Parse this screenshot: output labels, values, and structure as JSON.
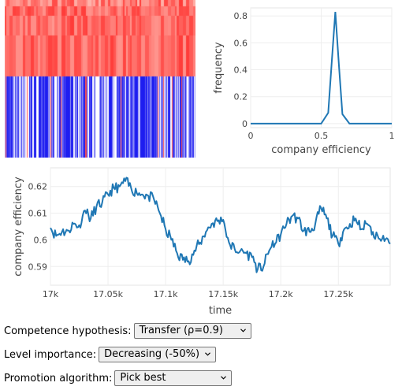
{
  "heatmap": {
    "top_color": "#ff4545",
    "bottom_base": "#ffffff",
    "bottom_colors": [
      "#1e1ef0",
      "#5a5af5",
      "#9a9af8",
      "#ff5050"
    ]
  },
  "histogram": {
    "chart_data": {
      "type": "line",
      "xlabel": "company efficiency",
      "ylabel": "frequency",
      "xlim": [
        0,
        1
      ],
      "ylim": [
        -0.03,
        0.86
      ],
      "xticks": [
        0,
        0.5,
        1
      ],
      "xtick_labels": [
        "0",
        "0.5",
        "1"
      ],
      "yticks": [
        0,
        0.2,
        0.4,
        0.6,
        0.8
      ],
      "ytick_labels": [
        "0",
        "0.2",
        "0.4",
        "0.6",
        "0.8"
      ],
      "x": [
        0,
        0.5,
        0.55,
        0.575,
        0.6,
        0.625,
        0.65,
        0.7,
        1
      ],
      "y": [
        0,
        0,
        0.08,
        0.46,
        0.83,
        0.44,
        0.07,
        0,
        0
      ],
      "color": "#1f77b4",
      "grid": true
    }
  },
  "timeseries": {
    "chart_data": {
      "type": "line",
      "xlabel": "time",
      "ylabel": "company efficiency",
      "xlim": [
        17000,
        17295
      ],
      "ylim": [
        0.583,
        0.627
      ],
      "xticks": [
        17000,
        17050,
        17100,
        17150,
        17200,
        17250
      ],
      "xtick_labels": [
        "17k",
        "17.05k",
        "17.1k",
        "17.15k",
        "17.2k",
        "17.25k"
      ],
      "yticks": [
        0.59,
        0.6,
        0.61,
        0.62
      ],
      "ytick_labels": [
        "0.59",
        "0.6",
        "0.61",
        "0.62"
      ],
      "color": "#1f77b4",
      "grid": true,
      "points": [
        [
          17000,
          0.6045
        ],
        [
          17005,
          0.6015
        ],
        [
          17010,
          0.603
        ],
        [
          17015,
          0.6035
        ],
        [
          17020,
          0.606
        ],
        [
          17025,
          0.6055
        ],
        [
          17030,
          0.611
        ],
        [
          17035,
          0.608
        ],
        [
          17040,
          0.6125
        ],
        [
          17045,
          0.614
        ],
        [
          17050,
          0.617
        ],
        [
          17055,
          0.6195
        ],
        [
          17060,
          0.62
        ],
        [
          17065,
          0.622
        ],
        [
          17070,
          0.6195
        ],
        [
          17075,
          0.6175
        ],
        [
          17080,
          0.617
        ],
        [
          17085,
          0.6165
        ],
        [
          17090,
          0.615
        ],
        [
          17095,
          0.61
        ],
        [
          17100,
          0.604
        ],
        [
          17105,
          0.6
        ],
        [
          17110,
          0.595
        ],
        [
          17115,
          0.5925
        ],
        [
          17120,
          0.592
        ],
        [
          17125,
          0.596
        ],
        [
          17130,
          0.599
        ],
        [
          17135,
          0.603
        ],
        [
          17140,
          0.606
        ],
        [
          17145,
          0.607
        ],
        [
          17150,
          0.6075
        ],
        [
          17155,
          0.599
        ],
        [
          17160,
          0.5965
        ],
        [
          17165,
          0.596
        ],
        [
          17170,
          0.595
        ],
        [
          17175,
          0.5935
        ],
        [
          17180,
          0.589
        ],
        [
          17185,
          0.59
        ],
        [
          17190,
          0.596
        ],
        [
          17195,
          0.5985
        ],
        [
          17200,
          0.602
        ],
        [
          17205,
          0.606
        ],
        [
          17210,
          0.609
        ],
        [
          17215,
          0.608
        ],
        [
          17220,
          0.6035
        ],
        [
          17225,
          0.603
        ],
        [
          17230,
          0.606
        ],
        [
          17235,
          0.612
        ],
        [
          17240,
          0.608
        ],
        [
          17245,
          0.6015
        ],
        [
          17250,
          0.5985
        ],
        [
          17255,
          0.604
        ],
        [
          17260,
          0.606
        ],
        [
          17265,
          0.608
        ],
        [
          17270,
          0.604
        ],
        [
          17275,
          0.606
        ],
        [
          17280,
          0.603
        ],
        [
          17285,
          0.6005
        ],
        [
          17290,
          0.5995
        ],
        [
          17295,
          0.5985
        ]
      ]
    }
  },
  "controls": {
    "competence": {
      "label": "Competence hypothesis:",
      "value": "Transfer (ρ=0.9)"
    },
    "level": {
      "label": "Level importance:",
      "value": "Decreasing (-50%)"
    },
    "promotion": {
      "label": "Promotion algorithm:",
      "value": "Pick best"
    }
  }
}
